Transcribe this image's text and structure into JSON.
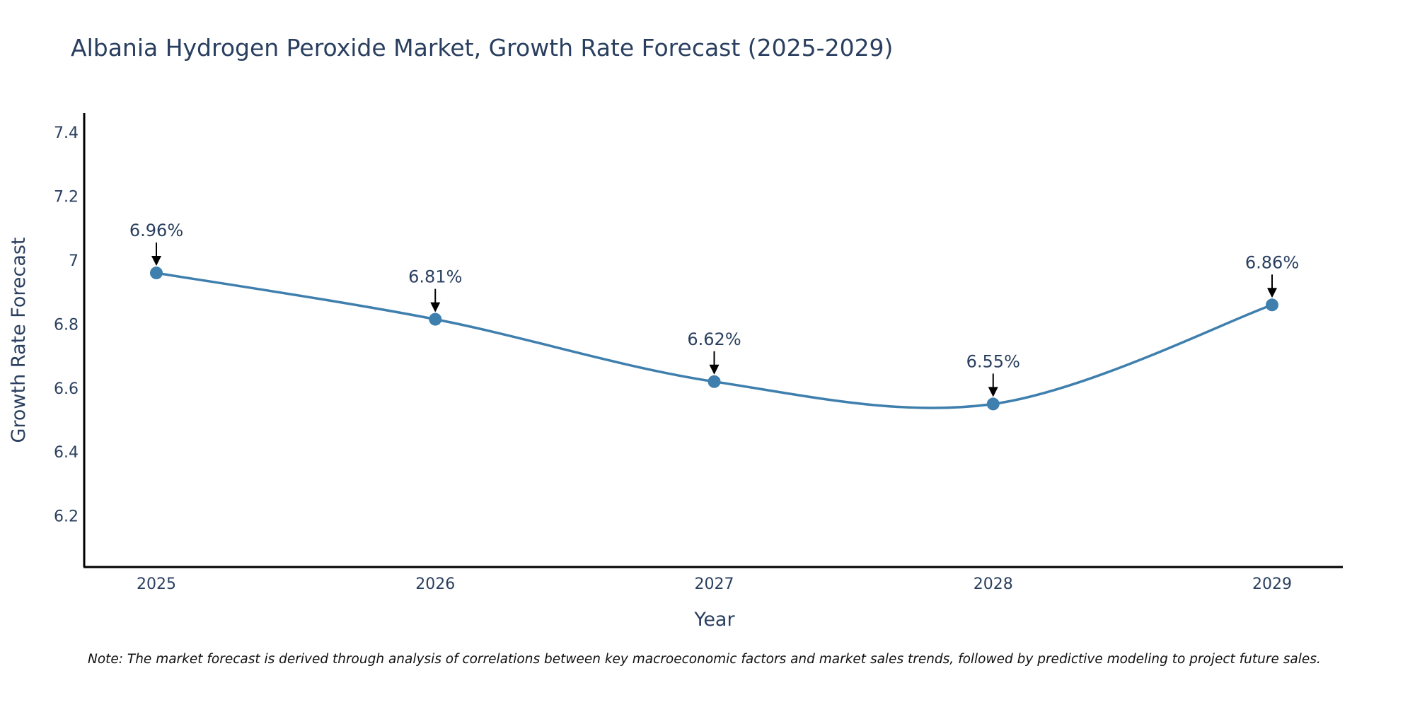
{
  "chart_data": {
    "type": "line",
    "title": "Albania Hydrogen Peroxide Market, Growth Rate Forecast (2025-2029)",
    "xlabel": "Year",
    "ylabel": "Growth Rate Forecast",
    "categories": [
      "2025",
      "2026",
      "2027",
      "2028",
      "2029"
    ],
    "values": [
      6.96,
      6.815,
      6.62,
      6.55,
      6.86
    ],
    "data_labels": [
      "6.96%",
      "6.81%",
      "6.62%",
      "6.55%",
      "6.86%"
    ],
    "ylim": [
      6.04,
      7.46
    ],
    "yticks": [
      6.2,
      6.4,
      6.6,
      6.8,
      7,
      7.2,
      7.4
    ],
    "ytick_labels": [
      "6.2",
      "6.4",
      "6.6",
      "6.8",
      "7",
      "7.2",
      "7.4"
    ],
    "grid": false,
    "line_shape": "spline",
    "colors": {
      "line": "#3f7fae",
      "marker": "#3f7fae",
      "arrow": "#000000",
      "text": "#2a3f5f"
    }
  },
  "note": "Note: The market forecast is derived through analysis of correlations between key macroeconomic factors and market sales trends, followed by predictive modeling to project future sales."
}
